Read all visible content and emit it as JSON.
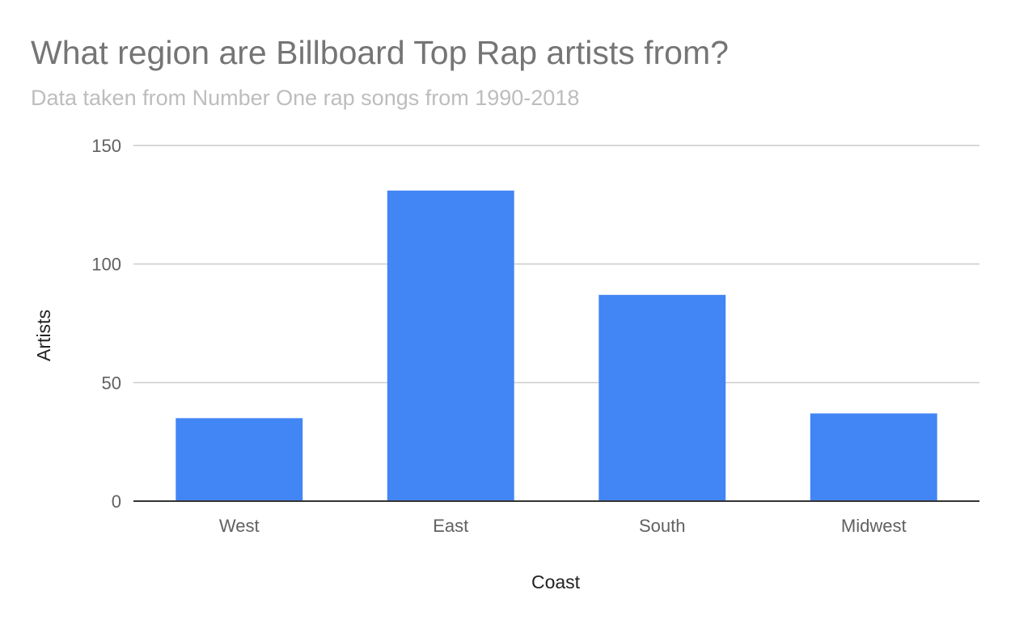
{
  "chart_data": {
    "type": "bar",
    "title": "What region are Billboard Top Rap artists from?",
    "subtitle": "Data taken from Number One rap songs from 1990-2018",
    "xlabel": "Coast",
    "ylabel": "Artists",
    "categories": [
      "West",
      "East",
      "South",
      "Midwest"
    ],
    "values": [
      35,
      131,
      87,
      37
    ],
    "ylim": [
      0,
      150
    ],
    "yticks": [
      0,
      50,
      100,
      150
    ],
    "grid": true,
    "legend": "none"
  },
  "colors": {
    "bar": "#4285f4",
    "grid": "#cccccc",
    "baseline": "#333333",
    "title": "#757575",
    "subtitle": "#bdbdbd",
    "tick_label": "#616161",
    "axis_label": "#222222"
  }
}
